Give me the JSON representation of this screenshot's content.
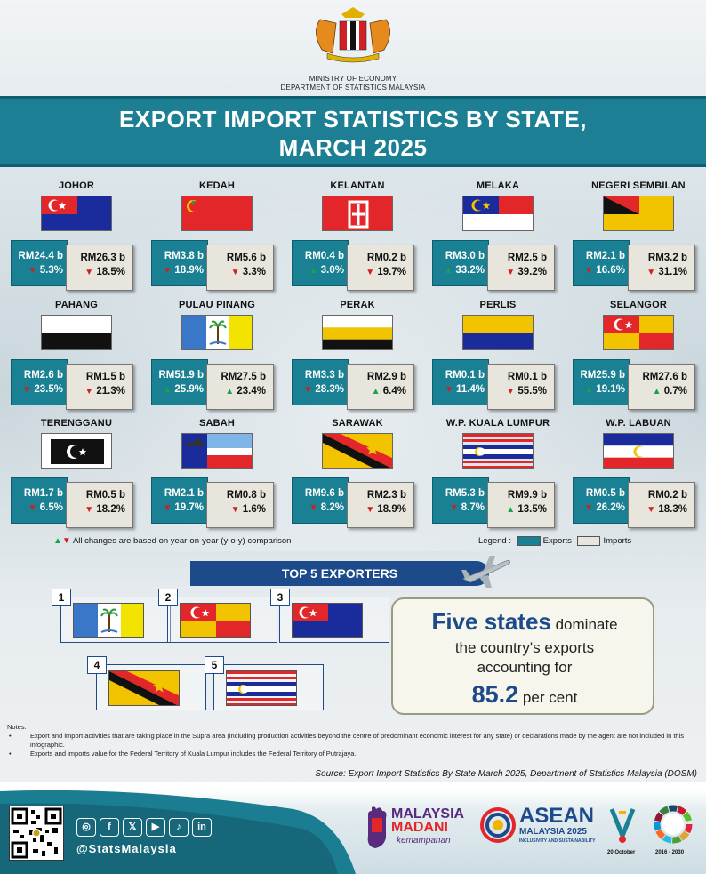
{
  "header": {
    "ministry_line1": "MINISTRY OF ECONOMY",
    "ministry_line2": "DEPARTMENT OF STATISTICS MALAYSIA",
    "title_line1": "EXPORT IMPORT STATISTICS BY STATE,",
    "title_line2": "MARCH 2025"
  },
  "states": [
    {
      "name": "JOHOR",
      "export_value": "RM24.4 b",
      "export_change": "5.3%",
      "export_dir": "down",
      "import_value": "RM26.3 b",
      "import_change": "18.5%",
      "import_dir": "down"
    },
    {
      "name": "KEDAH",
      "export_value": "RM3.8 b",
      "export_change": "18.9%",
      "export_dir": "down",
      "import_value": "RM5.6 b",
      "import_change": "3.3%",
      "import_dir": "down"
    },
    {
      "name": "KELANTAN",
      "export_value": "RM0.4 b",
      "export_change": "3.0%",
      "export_dir": "up",
      "import_value": "RM0.2 b",
      "import_change": "19.7%",
      "import_dir": "down"
    },
    {
      "name": "MELAKA",
      "export_value": "RM3.0 b",
      "export_change": "33.2%",
      "export_dir": "up",
      "import_value": "RM2.5 b",
      "import_change": "39.2%",
      "import_dir": "down"
    },
    {
      "name": "NEGERI SEMBILAN",
      "export_value": "RM2.1 b",
      "export_change": "16.6%",
      "export_dir": "down",
      "import_value": "RM3.2 b",
      "import_change": "31.1%",
      "import_dir": "down"
    },
    {
      "name": "PAHANG",
      "export_value": "RM2.6 b",
      "export_change": "23.5%",
      "export_dir": "down",
      "import_value": "RM1.5 b",
      "import_change": "21.3%",
      "import_dir": "down"
    },
    {
      "name": "PULAU PINANG",
      "export_value": "RM51.9 b",
      "export_change": "25.9%",
      "export_dir": "up",
      "import_value": "RM27.5 b",
      "import_change": "23.4%",
      "import_dir": "up"
    },
    {
      "name": "PERAK",
      "export_value": "RM3.3 b",
      "export_change": "28.3%",
      "export_dir": "down",
      "import_value": "RM2.9 b",
      "import_change": "6.4%",
      "import_dir": "up"
    },
    {
      "name": "PERLIS",
      "export_value": "RM0.1 b",
      "export_change": "11.4%",
      "export_dir": "down",
      "import_value": "RM0.1 b",
      "import_change": "55.5%",
      "import_dir": "down"
    },
    {
      "name": "SELANGOR",
      "export_value": "RM25.9 b",
      "export_change": "19.1%",
      "export_dir": "up",
      "import_value": "RM27.6 b",
      "import_change": "0.7%",
      "import_dir": "up"
    },
    {
      "name": "TERENGGANU",
      "export_value": "RM1.7 b",
      "export_change": "6.5%",
      "export_dir": "down",
      "import_value": "RM0.5 b",
      "import_change": "18.2%",
      "import_dir": "down"
    },
    {
      "name": "SABAH",
      "export_value": "RM2.1 b",
      "export_change": "19.7%",
      "export_dir": "down",
      "import_value": "RM0.8 b",
      "import_change": "1.6%",
      "import_dir": "down"
    },
    {
      "name": "SARAWAK",
      "export_value": "RM9.6 b",
      "export_change": "8.2%",
      "export_dir": "down",
      "import_value": "RM2.3 b",
      "import_change": "18.9%",
      "import_dir": "down"
    },
    {
      "name": "W.P. KUALA LUMPUR",
      "export_value": "RM5.3 b",
      "export_change": "8.7%",
      "export_dir": "down",
      "import_value": "RM9.9 b",
      "import_change": "13.5%",
      "import_dir": "up"
    },
    {
      "name": "W.P. LABUAN",
      "export_value": "RM0.5 b",
      "export_change": "26.2%",
      "export_dir": "down",
      "import_value": "RM0.2 b",
      "import_change": "18.3%",
      "import_dir": "down"
    }
  ],
  "yoy_note": "All changes are based on year-on-year (y-o-y) comparison",
  "legend": {
    "label": "Legend :",
    "exports": "Exports",
    "imports": "Imports",
    "export_color": "#1a8093",
    "import_color": "#e7e5dc"
  },
  "top5": {
    "title": "TOP 5 EXPORTERS",
    "ranks": [
      "1",
      "2",
      "3",
      "4",
      "5"
    ]
  },
  "summary": {
    "bold": "Five states",
    "rest1": "dominate",
    "line2": "the country's exports",
    "line3": "accounting for",
    "value": "85.2",
    "unit": "per cent"
  },
  "notes": {
    "heading": "Notes:",
    "items": [
      "Export and import activities that are taking place in the Supra area (including production activities beyond the centre of predominant economic interest for any state) or declarations made by the agent are not included in this infographic.",
      "Exports and imports value for the Federal Territory of Kuala Lumpur includes the Federal Territory of Putrajaya."
    ]
  },
  "source": "Source: Export Import Statistics By State March 2025, Department of Statistics Malaysia (DOSM)",
  "footer": {
    "handle": "@StatsMalaysia",
    "social": [
      "◎",
      "f",
      "𝕏",
      "▶",
      "♪",
      "in"
    ],
    "madani_1": "MALAYSIA",
    "madani_2": "MADANI",
    "madani_3": "kemampanan",
    "asean_1": "ASEAN",
    "asean_2": "MALAYSIA 2025",
    "asean_3": "INCLUSIVITY AND SUSTAINABILITY",
    "date": "20 October",
    "years": "2016 - 2030"
  },
  "colors": {
    "teal": "#1a8093",
    "navy": "#1c4a8a",
    "down": "#d0201b",
    "up": "#17a34a"
  }
}
